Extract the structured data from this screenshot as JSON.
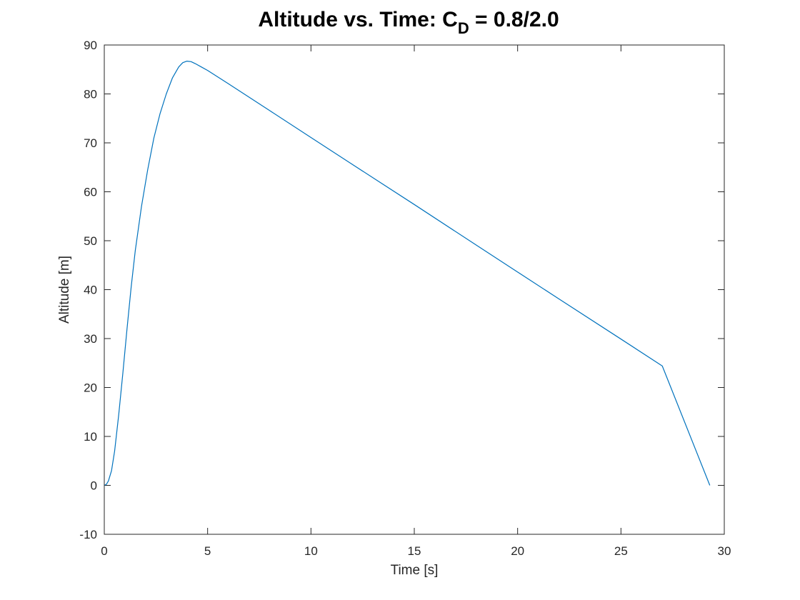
{
  "chart_data": {
    "type": "line",
    "title": {
      "main": "Altitude vs. Time: C",
      "subscript": "D",
      "suffix": " = 0.8/2.0"
    },
    "xlabel": "Time [s]",
    "ylabel": "Altitude [m]",
    "xlim": [
      0,
      30
    ],
    "ylim": [
      -10,
      90
    ],
    "xticks": [
      0,
      5,
      10,
      15,
      20,
      25,
      30
    ],
    "yticks": [
      -10,
      0,
      10,
      20,
      30,
      40,
      50,
      60,
      70,
      80,
      90
    ],
    "xtick_labels": [
      "0",
      "5",
      "10",
      "15",
      "20",
      "25",
      "30"
    ],
    "ytick_labels": [
      "-10",
      "0",
      "10",
      "20",
      "30",
      "40",
      "50",
      "60",
      "70",
      "80",
      "90"
    ],
    "grid": false,
    "box": true,
    "line_color": "#0072BD",
    "series": [
      {
        "x": [
          0.0,
          0.1,
          0.2,
          0.35,
          0.5,
          0.7,
          0.9,
          1.1,
          1.3,
          1.5,
          1.8,
          2.1,
          2.4,
          2.7,
          3.0,
          3.3,
          3.6,
          3.8,
          4.0,
          4.2,
          4.4,
          4.7,
          5.0,
          6.0,
          8.0,
          10.0,
          12.0,
          15.0,
          18.0,
          20.0,
          22.0,
          25.0,
          27.0,
          29.3
        ],
        "y": [
          0.0,
          0.2,
          0.9,
          3.0,
          7.0,
          14.5,
          23.0,
          32.0,
          40.5,
          48.0,
          57.0,
          64.5,
          71.0,
          76.0,
          80.0,
          83.3,
          85.5,
          86.4,
          86.7,
          86.6,
          86.2,
          85.5,
          84.8,
          82.1,
          76.6,
          71.1,
          65.6,
          57.4,
          49.1,
          43.6,
          38.1,
          29.9,
          24.4,
          0.0
        ]
      }
    ]
  }
}
